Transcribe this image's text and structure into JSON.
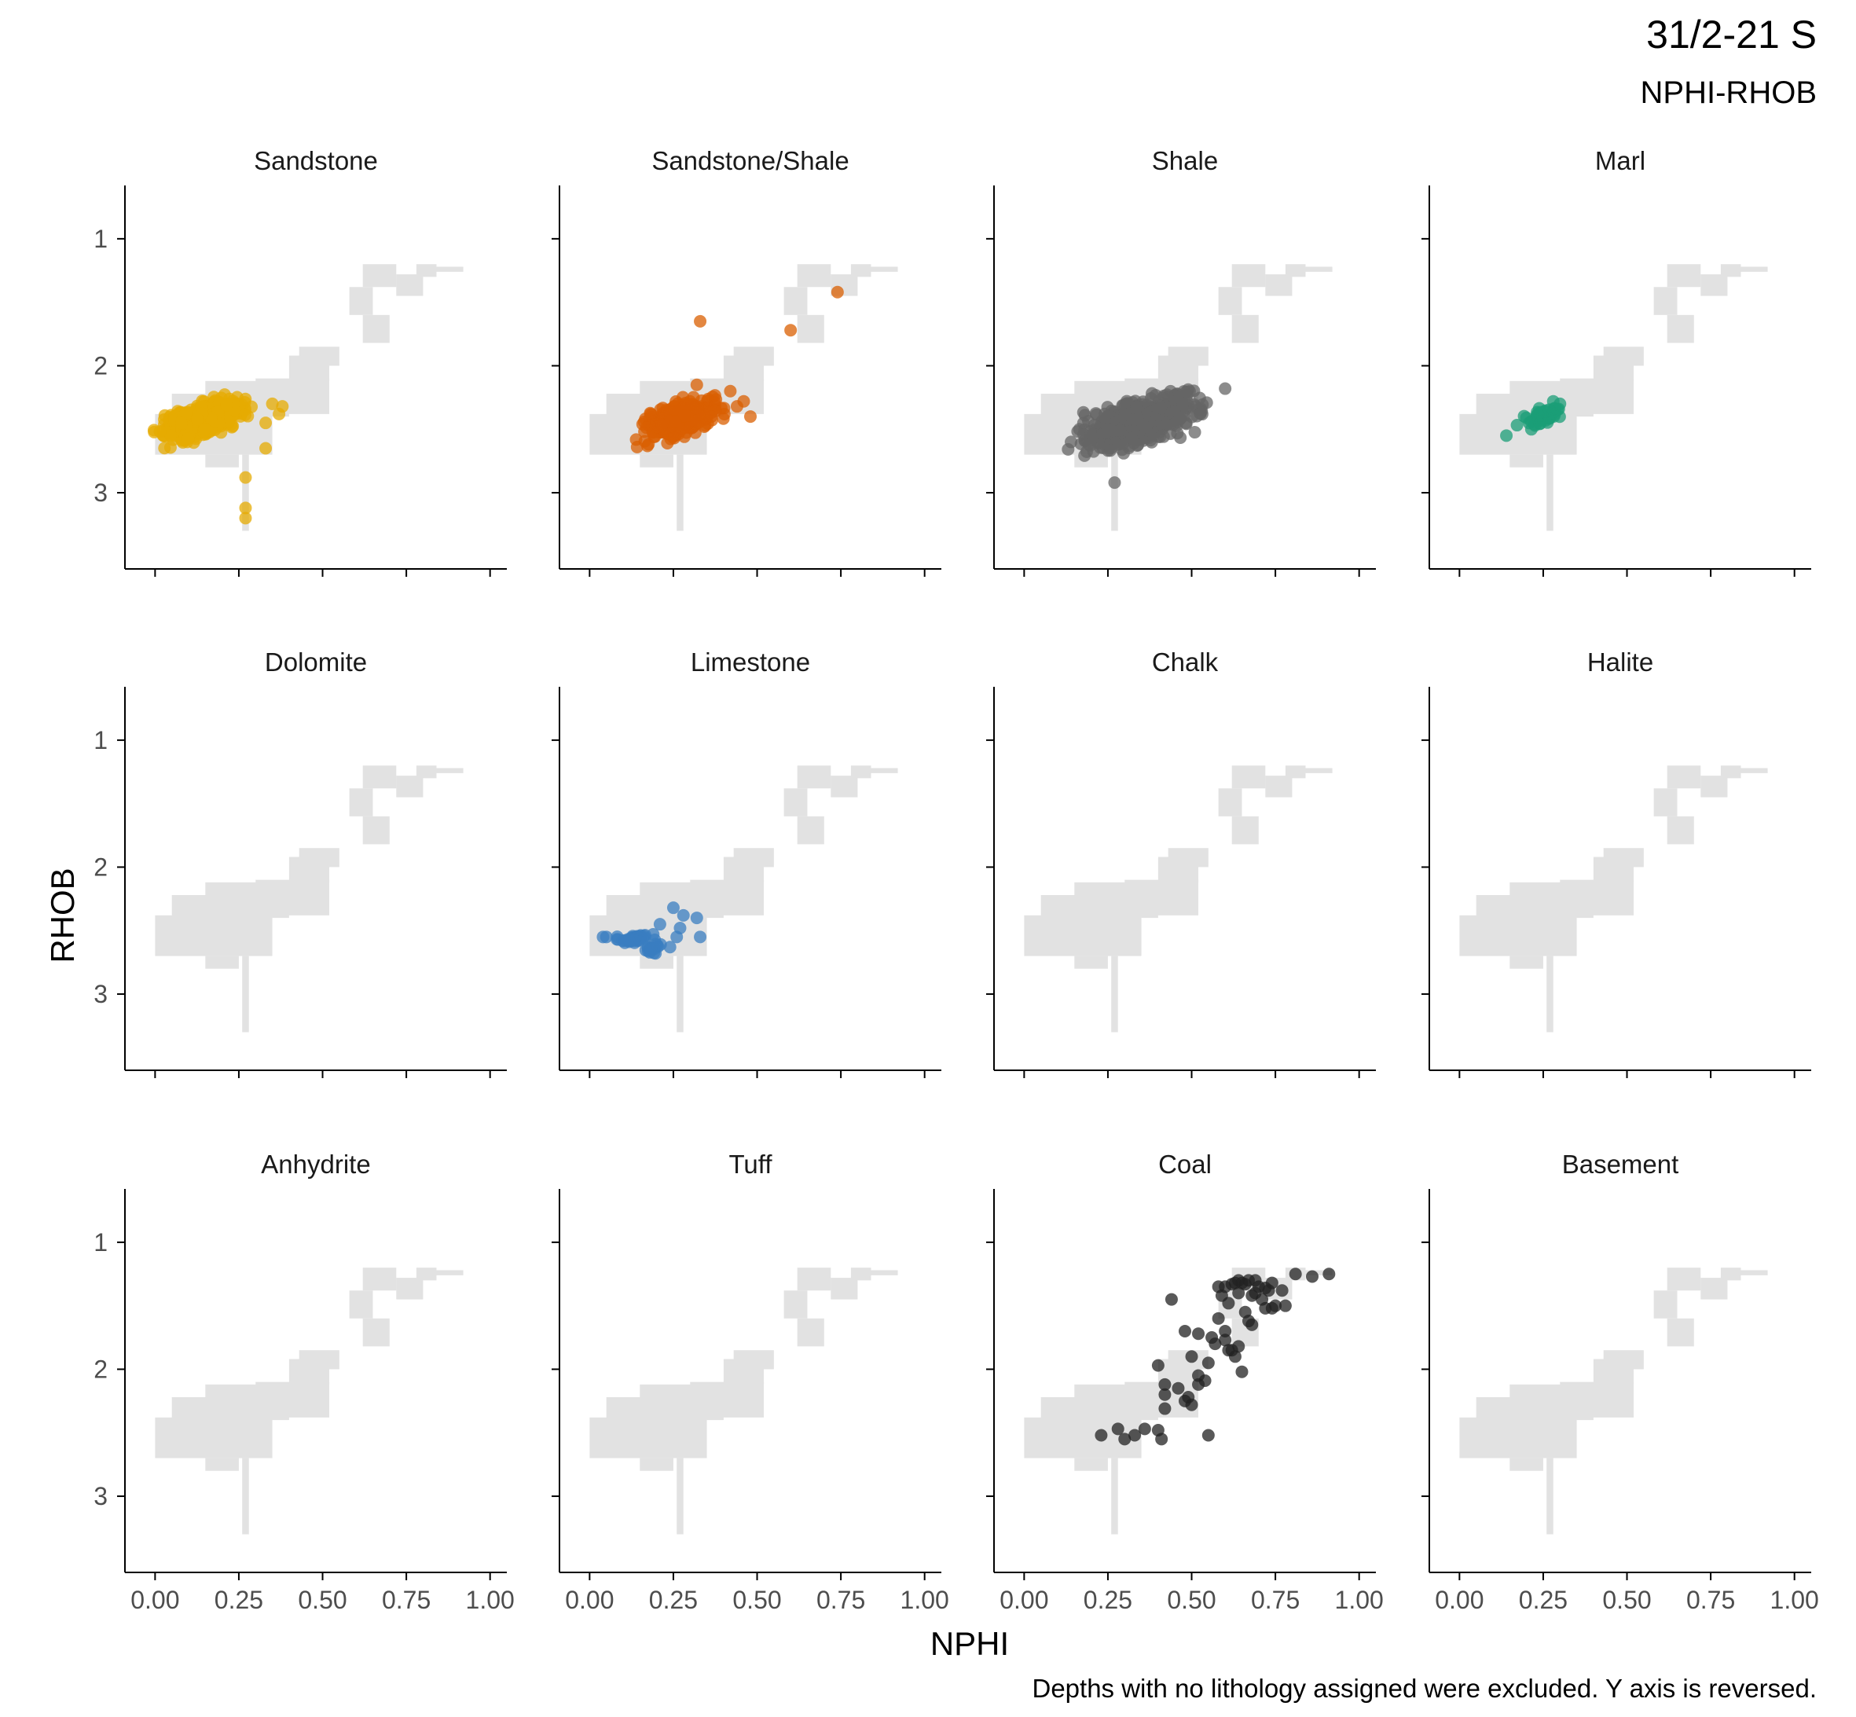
{
  "title": "31/2-21 S",
  "subtitle": "NPHI-RHOB",
  "caption": "Depths with no lithology assigned were excluded. Y axis is reversed.",
  "colors": {
    "background_cloud": "#e2e2e2",
    "axis": "#000000",
    "tick_label": "#4d4d4d"
  },
  "chart_data": {
    "type": "scatter",
    "facet_wrap": true,
    "xlabel": "NPHI",
    "ylabel": "RHOB",
    "xlim": [
      -0.09,
      1.05
    ],
    "ylim": [
      3.6,
      0.58
    ],
    "y_reversed": true,
    "xticks": [
      0,
      0.25,
      0.5,
      0.75,
      1
    ],
    "xtick_labels": [
      "0.00",
      "0.25",
      "0.50",
      "0.75",
      "1.00"
    ],
    "yticks": [
      1,
      2,
      3
    ],
    "ytick_labels": [
      "1",
      "2",
      "3"
    ],
    "grid": false,
    "background_cloud": {
      "description": "all samples (grey 2D-binned cloud behind each panel)",
      "bins": [
        [
          0.0,
          0.35,
          2.38,
          2.7
        ],
        [
          0.05,
          0.4,
          2.22,
          2.4
        ],
        [
          0.15,
          0.42,
          2.12,
          2.25
        ],
        [
          0.3,
          0.52,
          2.1,
          2.38
        ],
        [
          0.4,
          0.52,
          1.92,
          2.12
        ],
        [
          0.43,
          0.55,
          1.85,
          2.0
        ],
        [
          0.26,
          0.28,
          2.7,
          3.3
        ],
        [
          0.15,
          0.25,
          2.7,
          2.8
        ],
        [
          0.62,
          0.72,
          1.2,
          1.38
        ],
        [
          0.58,
          0.65,
          1.38,
          1.6
        ],
        [
          0.62,
          0.7,
          1.6,
          1.82
        ],
        [
          0.72,
          0.8,
          1.28,
          1.45
        ],
        [
          0.78,
          0.84,
          1.2,
          1.3
        ],
        [
          0.84,
          0.92,
          1.22,
          1.26
        ]
      ]
    },
    "panels": [
      {
        "name": "Sandstone",
        "color": "#e6ab02",
        "clusters": [
          {
            "x": [
              -0.02,
              0.3
            ],
            "y": [
              2.15,
              2.7
            ],
            "n": 520
          }
        ],
        "points": [
          [
            0.38,
            2.32
          ],
          [
            0.37,
            2.38
          ],
          [
            0.33,
            2.45
          ],
          [
            0.33,
            2.65
          ],
          [
            0.27,
            2.88
          ],
          [
            0.27,
            3.12
          ],
          [
            0.27,
            3.2
          ],
          [
            0.35,
            2.3
          ]
        ]
      },
      {
        "name": "Sandstone/Shale",
        "color": "#d95f02",
        "clusters": [
          {
            "x": [
              0.12,
              0.42
            ],
            "y": [
              2.15,
              2.68
            ],
            "n": 320
          }
        ],
        "points": [
          [
            0.33,
            1.65
          ],
          [
            0.6,
            1.72
          ],
          [
            0.74,
            1.42
          ],
          [
            0.32,
            2.15
          ],
          [
            0.42,
            2.2
          ],
          [
            0.48,
            2.4
          ],
          [
            0.44,
            2.32
          ],
          [
            0.46,
            2.28
          ]
        ]
      },
      {
        "name": "Shale",
        "color": "#666666",
        "clusters": [
          {
            "x": [
              0.12,
              0.58
            ],
            "y": [
              2.1,
              2.78
            ],
            "n": 600
          }
        ],
        "points": [
          [
            0.6,
            2.18
          ],
          [
            0.27,
            2.92
          ],
          [
            0.14,
            2.6
          ]
        ]
      },
      {
        "name": "Marl",
        "color": "#1b9e77",
        "clusters": [
          {
            "x": [
              0.15,
              0.34
            ],
            "y": [
              2.25,
              2.55
            ],
            "n": 45
          }
        ],
        "points": [
          [
            0.14,
            2.55
          ],
          [
            0.28,
            2.28
          ],
          [
            0.3,
            2.3
          ]
        ]
      },
      {
        "name": "Dolomite",
        "color": "#7570b3",
        "clusters": [],
        "points": []
      },
      {
        "name": "Limestone",
        "color": "#3a7dc0",
        "clusters": [
          {
            "x": [
              0.06,
              0.22
            ],
            "y": [
              2.5,
              2.62
            ],
            "n": 40
          },
          {
            "x": [
              0.15,
              0.22
            ],
            "y": [
              2.55,
              2.75
            ],
            "n": 20
          }
        ],
        "points": [
          [
            0.25,
            2.32
          ],
          [
            0.28,
            2.38
          ],
          [
            0.32,
            2.4
          ],
          [
            0.33,
            2.55
          ],
          [
            0.27,
            2.48
          ],
          [
            0.26,
            2.55
          ],
          [
            0.24,
            2.63
          ],
          [
            0.21,
            2.45
          ],
          [
            0.05,
            2.55
          ],
          [
            0.04,
            2.55
          ]
        ]
      },
      {
        "name": "Chalk",
        "color": "#66a61e",
        "clusters": [],
        "points": []
      },
      {
        "name": "Halite",
        "color": "#a6761d",
        "clusters": [],
        "points": []
      },
      {
        "name": "Anhydrite",
        "color": "#e7298a",
        "clusters": [],
        "points": []
      },
      {
        "name": "Tuff",
        "color": "#e6ab02",
        "clusters": [],
        "points": []
      },
      {
        "name": "Coal",
        "color": "#222222",
        "clusters": [],
        "points": [
          [
            0.23,
            2.52
          ],
          [
            0.28,
            2.47
          ],
          [
            0.3,
            2.55
          ],
          [
            0.33,
            2.52
          ],
          [
            0.36,
            2.47
          ],
          [
            0.4,
            2.48
          ],
          [
            0.41,
            2.55
          ],
          [
            0.42,
            2.31
          ],
          [
            0.42,
            2.2
          ],
          [
            0.42,
            2.12
          ],
          [
            0.4,
            1.97
          ],
          [
            0.44,
            1.45
          ],
          [
            0.48,
            2.25
          ],
          [
            0.49,
            2.22
          ],
          [
            0.5,
            2.28
          ],
          [
            0.52,
            2.12
          ],
          [
            0.52,
            2.05
          ],
          [
            0.5,
            1.9
          ],
          [
            0.48,
            1.7
          ],
          [
            0.54,
            2.09
          ],
          [
            0.55,
            2.52
          ],
          [
            0.56,
            1.75
          ],
          [
            0.57,
            1.8
          ],
          [
            0.58,
            1.6
          ],
          [
            0.6,
            1.7
          ],
          [
            0.58,
            1.35
          ],
          [
            0.6,
            1.35
          ],
          [
            0.62,
            1.33
          ],
          [
            0.63,
            1.32
          ],
          [
            0.64,
            1.4
          ],
          [
            0.65,
            1.32
          ],
          [
            0.66,
            1.33
          ],
          [
            0.67,
            1.3
          ],
          [
            0.62,
            1.85
          ],
          [
            0.63,
            1.9
          ],
          [
            0.64,
            1.82
          ],
          [
            0.65,
            2.02
          ],
          [
            0.66,
            1.55
          ],
          [
            0.67,
            1.62
          ],
          [
            0.68,
            1.65
          ],
          [
            0.69,
            1.4
          ],
          [
            0.7,
            1.35
          ],
          [
            0.71,
            1.45
          ],
          [
            0.72,
            1.52
          ],
          [
            0.73,
            1.38
          ],
          [
            0.74,
            1.52
          ],
          [
            0.75,
            1.5
          ],
          [
            0.77,
            1.38
          ],
          [
            0.78,
            1.5
          ],
          [
            0.81,
            1.25
          ],
          [
            0.86,
            1.27
          ],
          [
            0.91,
            1.25
          ],
          [
            0.64,
            1.3
          ],
          [
            0.68,
            1.42
          ],
          [
            0.61,
            1.48
          ],
          [
            0.74,
            1.32
          ],
          [
            0.69,
            1.3
          ],
          [
            0.72,
            1.36
          ],
          [
            0.6,
            1.77
          ],
          [
            0.61,
            1.85
          ],
          [
            0.55,
            1.95
          ],
          [
            0.46,
            2.15
          ],
          [
            0.52,
            1.72
          ],
          [
            0.59,
            1.42
          ]
        ]
      },
      {
        "name": "Basement",
        "color": "#999999",
        "clusters": [],
        "points": []
      }
    ]
  }
}
